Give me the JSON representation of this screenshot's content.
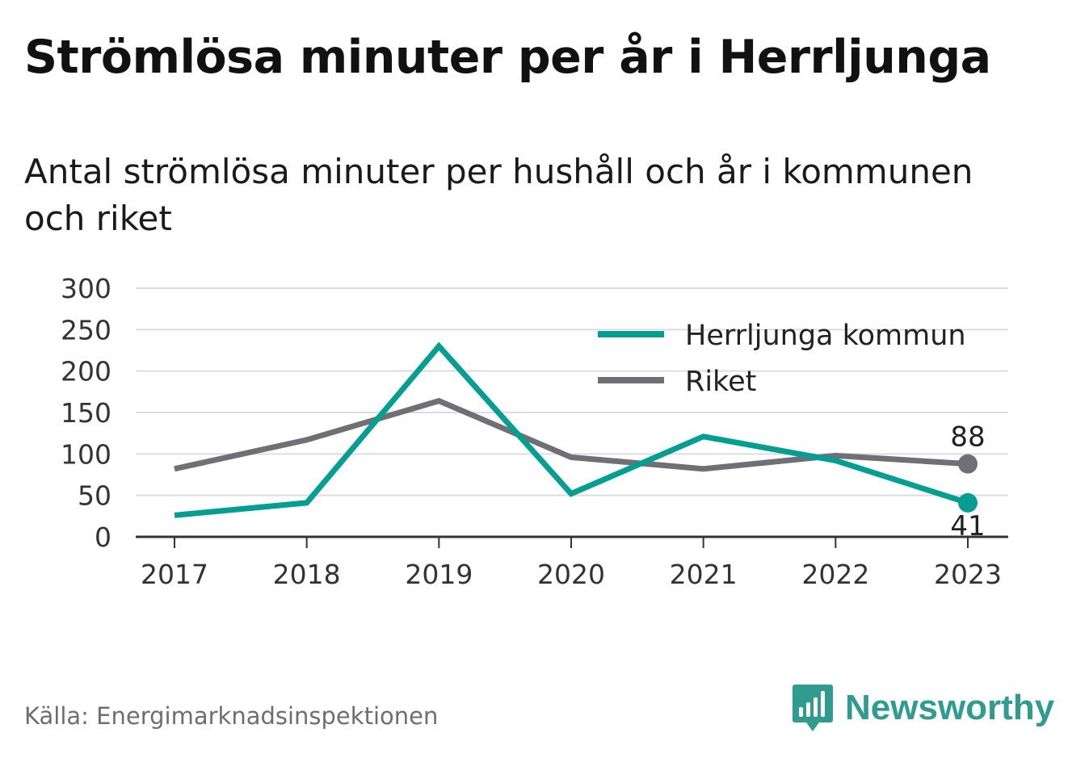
{
  "title": "Strömlösa minuter per år i Herrljunga",
  "subtitle": "Antal strömlösa minuter per hushåll och år i kommunen och riket",
  "source": "Källa: Energimarknadsinspektionen",
  "brand": {
    "name": "Newsworthy",
    "icon": "newsworthy-bars-icon",
    "color": "#2f9c8f"
  },
  "chart_data": {
    "type": "line",
    "x": [
      "2017",
      "2018",
      "2019",
      "2020",
      "2021",
      "2022",
      "2023"
    ],
    "ylim": [
      0,
      300
    ],
    "yticks": [
      "0",
      "50",
      "100",
      "150",
      "200",
      "250",
      "300"
    ],
    "grid": true,
    "legend_position": "top-right",
    "series": [
      {
        "name": "Herrljunga kommun",
        "color": "#069e92",
        "values": [
          26,
          41,
          230,
          52,
          121,
          92,
          41
        ],
        "end_label": "41"
      },
      {
        "name": "Riket",
        "color": "#6f6f75",
        "values": [
          82,
          117,
          164,
          96,
          82,
          98,
          88
        ],
        "end_label": "88"
      }
    ]
  }
}
